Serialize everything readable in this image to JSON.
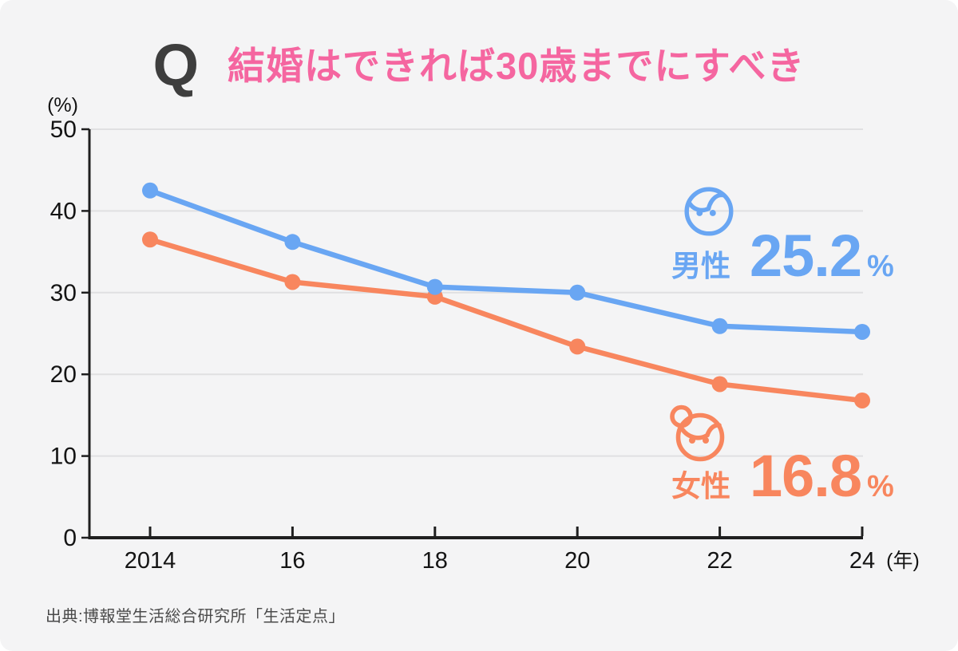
{
  "title": {
    "q": "Q",
    "text": "結婚はできれば30歳までにすべき"
  },
  "colors": {
    "male": "#69a6f3",
    "female": "#f8865e",
    "title_pink": "#f566a0",
    "q_dark": "#3e3e3e",
    "background": "#f4f4f5",
    "gridline": "#e0e0e2",
    "axis": "#1f1f1f",
    "label_text": "#141414",
    "source_text": "#4a4a4a"
  },
  "chart_data": {
    "type": "line",
    "x": [
      2014,
      2016,
      2018,
      2020,
      2022,
      2024
    ],
    "x_tick_labels": [
      "2014",
      "16",
      "18",
      "20",
      "22",
      "24"
    ],
    "x_axis_suffix": "(年)",
    "y_unit_label": "(%)",
    "y_ticks": [
      0,
      10,
      20,
      30,
      40,
      50
    ],
    "ylim": [
      0,
      50
    ],
    "grid": "horizontal",
    "legend_position": "inside-right",
    "series": [
      {
        "key": "male",
        "name": "男性",
        "color": "#69a6f3",
        "values": [
          42.5,
          36.2,
          30.7,
          30.0,
          25.9,
          25.2
        ]
      },
      {
        "key": "female",
        "name": "女性",
        "color": "#f8865e",
        "values": [
          36.5,
          31.3,
          29.5,
          23.4,
          18.8,
          16.8
        ]
      }
    ]
  },
  "legend": {
    "male": {
      "label": "男性",
      "value": "25.2",
      "unit": "%"
    },
    "female": {
      "label": "女性",
      "value": "16.8",
      "unit": "%"
    }
  },
  "source": "出典:博報堂生活総合研究所「生活定点」"
}
